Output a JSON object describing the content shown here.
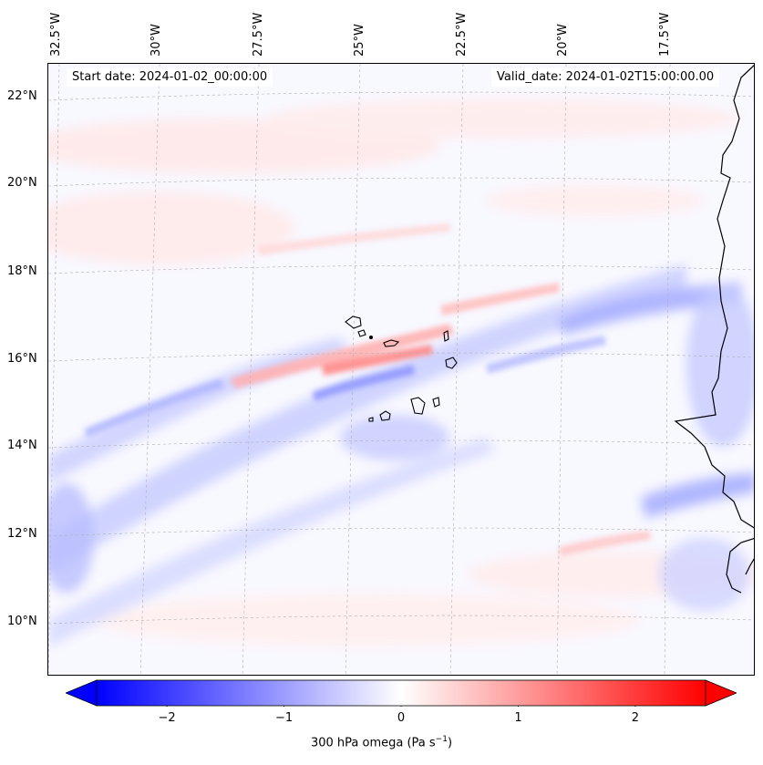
{
  "map": {
    "start_date": "Start date: 2024-01-02_00:00:00",
    "valid_date": "Valid_date: 2024-01-02T15:00:00.00",
    "lon_labels": [
      "32.5°W",
      "30°W",
      "27.5°W",
      "25°W",
      "22.5°W",
      "20°W",
      "17.5°W"
    ],
    "lat_labels": [
      "22°N",
      "20°N",
      "18°N",
      "16°N",
      "14°N",
      "12°N",
      "10°N"
    ],
    "variable": "300 hPa omega",
    "units": "Pa s⁻¹"
  },
  "colorbar": {
    "label": "300 hPa omega (Pa s",
    "label_exp": "−1",
    "label_close": ")",
    "ticks": [
      "−2",
      "−1",
      "0",
      "1",
      "2"
    ],
    "tick_values": [
      -2,
      -1,
      0,
      1,
      2
    ],
    "range": [
      -2.6,
      2.6
    ],
    "cmap": "bwr",
    "color_low": "#0000ff",
    "color_mid": "#ffffff",
    "color_high": "#ff0000"
  }
}
